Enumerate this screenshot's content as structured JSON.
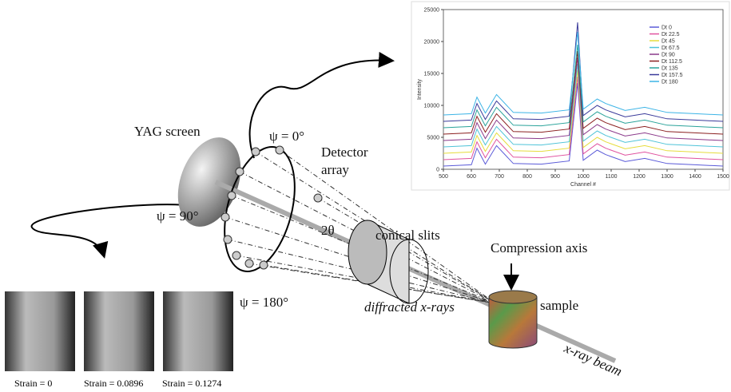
{
  "diagram": {
    "yag_screen": "YAG screen",
    "psi_0": "ψ = 0°",
    "detector_array": [
      "Detector",
      "array"
    ],
    "psi_90": "ψ = 90°",
    "two_theta": "2θ",
    "conical_slits": "conical slits",
    "psi_180": "ψ = 180°",
    "compression_axis": "Compression axis",
    "sample": "sample",
    "diffracted": "diffracted x-rays",
    "beam": "x-ray beam",
    "strains": [
      "Strain = 0",
      "Strain = 0.0896",
      "Strain = 0.1274"
    ]
  },
  "chart_data": {
    "type": "line",
    "y_label": "Intensity",
    "x_label": "Channel #",
    "x": [
      500,
      600,
      620,
      650,
      690,
      750,
      850,
      950,
      980,
      1000,
      1050,
      1080,
      1150,
      1220,
      1300,
      1400,
      1500
    ],
    "xlim": [
      500,
      1500
    ],
    "xticks": [
      500,
      600,
      700,
      800,
      900,
      1000,
      1100,
      1200,
      1300,
      1400,
      1500
    ],
    "ylim": [
      0,
      25000
    ],
    "yticks": [
      0,
      5000,
      10000,
      15000,
      20000,
      25000
    ],
    "legend": "upper right",
    "series": [
      {
        "name": "Dt 0",
        "color": "#5a5ad8",
        "values": [
          500,
          700,
          3300,
          800,
          3700,
          900,
          800,
          1300,
          13500,
          1400,
          3000,
          2300,
          1200,
          1700,
          900,
          700,
          500
        ]
      },
      {
        "name": "Dt 22.5",
        "color": "#e0529f",
        "values": [
          1500,
          1700,
          4300,
          1800,
          4700,
          1900,
          1800,
          2300,
          14500,
          2400,
          4000,
          3300,
          2200,
          2700,
          1900,
          1700,
          1500
        ]
      },
      {
        "name": "Dt 45",
        "color": "#e6dc3c",
        "values": [
          2500,
          2700,
          5300,
          2800,
          5700,
          2900,
          2800,
          3300,
          15500,
          3400,
          5000,
          4300,
          3200,
          3700,
          2900,
          2700,
          2500
        ]
      },
      {
        "name": "Dt 67.5",
        "color": "#4fc3d8",
        "values": [
          3500,
          3700,
          6300,
          3800,
          6700,
          3900,
          3800,
          4300,
          16500,
          4400,
          6000,
          5300,
          4200,
          4700,
          3900,
          3700,
          3500
        ]
      },
      {
        "name": "Dt 90",
        "color": "#8b3a8b",
        "values": [
          4500,
          4700,
          7300,
          4800,
          7700,
          4900,
          4800,
          5300,
          17500,
          5400,
          7000,
          6300,
          5200,
          5700,
          4900,
          4700,
          4500
        ]
      },
      {
        "name": "Dt 112.5",
        "color": "#8b2020",
        "values": [
          5500,
          5700,
          8300,
          5800,
          8700,
          5900,
          5800,
          6300,
          18500,
          6400,
          8000,
          7300,
          6200,
          6700,
          5900,
          5700,
          5500
        ]
      },
      {
        "name": "Dt 135",
        "color": "#2aa39a",
        "values": [
          6500,
          6700,
          9300,
          6800,
          9700,
          6900,
          6800,
          7300,
          19500,
          7400,
          9000,
          8300,
          7200,
          7700,
          6900,
          6700,
          6500
        ]
      },
      {
        "name": "Dt 157.5",
        "color": "#3a3a9a",
        "values": [
          7500,
          7700,
          10300,
          7800,
          10700,
          7900,
          7800,
          8300,
          23000,
          8400,
          10000,
          9300,
          8200,
          8700,
          7900,
          7700,
          7500
        ]
      },
      {
        "name": "Dt 180",
        "color": "#3cb4e6",
        "values": [
          8500,
          8700,
          11300,
          8800,
          11700,
          8900,
          8800,
          9300,
          21500,
          9400,
          11000,
          10300,
          9200,
          9700,
          8900,
          8700,
          8500
        ]
      }
    ]
  }
}
